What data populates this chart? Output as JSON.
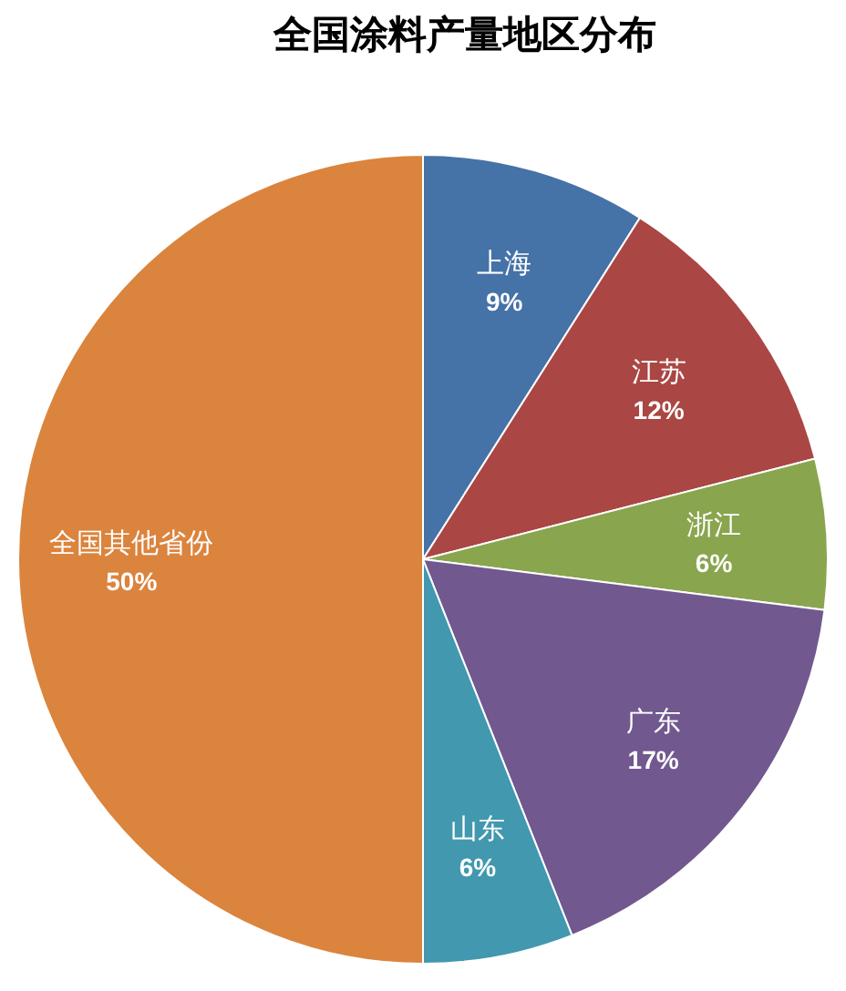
{
  "chart_data": {
    "type": "pie",
    "title": "全国涂料产量地区分布",
    "categories": [
      "上海",
      "江苏",
      "浙江",
      "广东",
      "山东",
      "全国其他省份"
    ],
    "values": [
      9,
      12,
      6,
      17,
      6,
      50
    ],
    "colors": [
      "#4572a7",
      "#aa4643",
      "#89a54e",
      "#71588f",
      "#4198af",
      "#db843d"
    ],
    "value_labels": [
      "9%",
      "12%",
      "6%",
      "17%",
      "6%",
      "50%"
    ]
  }
}
